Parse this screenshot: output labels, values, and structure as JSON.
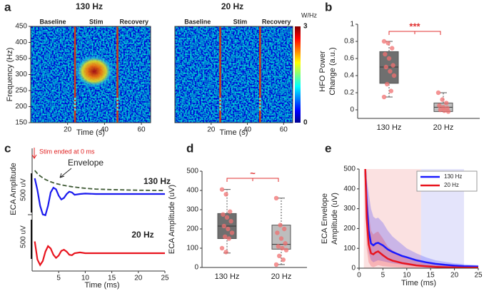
{
  "chart_data": [
    {
      "type": "heatmap",
      "panel": "a",
      "title": "130 Hz",
      "xlabel": "Time (s)",
      "ylabel": "Frequency (Hz)",
      "xlim": [
        0,
        65
      ],
      "xticks": [
        20,
        40,
        60
      ],
      "ylim": [
        150,
        450
      ],
      "yticks": [
        150,
        200,
        250,
        300,
        350,
        400,
        450
      ],
      "phases": [
        "Baseline",
        "Stim",
        "Recovery"
      ],
      "stim_window": [
        24,
        47
      ]
    },
    {
      "type": "heatmap",
      "title": "20 Hz",
      "xlabel": "Time (s)",
      "xlim": [
        0,
        65
      ],
      "xticks": [
        20,
        40,
        60
      ],
      "ylim": [
        150,
        450
      ],
      "phases": [
        "Baseline",
        "Stim",
        "Recovery"
      ],
      "stim_window": [
        25,
        47
      ],
      "colorbar": {
        "label": "W/Hz",
        "ticks": [
          0,
          3
        ]
      }
    },
    {
      "type": "box",
      "panel": "b",
      "ylabel": [
        "HFO Power",
        "Change (a.u.)"
      ],
      "categories": [
        "130 Hz",
        "20 Hz"
      ],
      "ylim": [
        -0.1,
        1
      ],
      "yticks": [
        0,
        0.2,
        0.4,
        0.6,
        0.8,
        1
      ],
      "significance": "***",
      "boxes": [
        {
          "q1": 0.31,
          "median": 0.5,
          "q3": 0.68,
          "whisker": [
            0.15,
            0.8
          ],
          "color": "#6f6f6f",
          "points": [
            0.8,
            0.78,
            0.72,
            0.65,
            0.6,
            0.52,
            0.5,
            0.45,
            0.4,
            0.3,
            0.22,
            0.15
          ]
        },
        {
          "q1": -0.02,
          "median": 0.03,
          "q3": 0.08,
          "whisker": [
            -0.02,
            0.2
          ],
          "color": "#bdbdbd",
          "points": [
            0.2,
            0.12,
            0.08,
            0.05,
            0.03,
            0.02,
            0,
            -0.01,
            -0.02
          ]
        }
      ]
    },
    {
      "type": "trace",
      "panel": "c",
      "xlabel": "Time (ms)",
      "ylabel": "ECA Amplitude",
      "xlim": [
        0,
        25
      ],
      "xticks": [
        5,
        10,
        15,
        20,
        25
      ],
      "annotation": "Stim ended at 0 ms",
      "scale_bar": {
        "value": 500,
        "label": "500 uV"
      },
      "x": [
        0.5,
        1,
        1.5,
        2,
        2.5,
        3,
        3.5,
        4,
        4.5,
        5,
        5.5,
        6,
        6.5,
        7,
        7.5,
        8,
        9,
        10,
        12,
        15,
        20,
        25
      ],
      "series": [
        {
          "name": "130 Hz",
          "color": "#1a1aee",
          "values": [
            200,
            50,
            -150,
            -260,
            -270,
            -150,
            20,
            80,
            60,
            -20,
            -70,
            -50,
            0,
            30,
            20,
            -10,
            0,
            5,
            0,
            0,
            0,
            0
          ]
        },
        {
          "name": "20 Hz",
          "color": "#e8141e",
          "values": [
            150,
            -80,
            -150,
            -100,
            20,
            90,
            60,
            -20,
            -60,
            -30,
            30,
            45,
            20,
            -20,
            -25,
            0,
            10,
            0,
            0,
            0,
            0,
            0
          ]
        }
      ],
      "envelope": {
        "name": "Envelope",
        "color": "#3f5a35",
        "values": [
          300,
          260,
          230,
          205,
          185,
          170,
          155,
          143,
          133,
          125,
          117,
          110,
          104,
          98,
          93,
          88,
          80,
          73,
          63,
          55,
          48,
          45
        ]
      }
    },
    {
      "type": "box",
      "panel": "d",
      "ylabel": [
        "ECA Amplitude (uV)"
      ],
      "categories": [
        "130 Hz",
        "20 Hz"
      ],
      "ylim": [
        0,
        500
      ],
      "yticks": [
        0,
        100,
        200,
        300,
        400,
        500
      ],
      "significance": "~",
      "boxes": [
        {
          "q1": 150,
          "median": 215,
          "q3": 280,
          "whisker": [
            75,
            405
          ],
          "color": "#6f6f6f",
          "points": [
            405,
            380,
            290,
            275,
            260,
            240,
            215,
            200,
            180,
            160,
            150,
            100,
            80
          ]
        },
        {
          "q1": 95,
          "median": 120,
          "q3": 220,
          "whisker": [
            15,
            360
          ],
          "color": "#bdbdbd",
          "points": [
            360,
            220,
            200,
            180,
            150,
            125,
            110,
            100,
            90,
            60,
            40,
            15
          ]
        }
      ]
    },
    {
      "type": "line",
      "panel": "e",
      "xlabel": "Time (ms)",
      "ylabel": [
        "ECA Envelope",
        "Amplitude (uV)"
      ],
      "xlim": [
        0,
        25
      ],
      "xticks": [
        0,
        5,
        10,
        15,
        20,
        25
      ],
      "ylim": [
        0,
        500
      ],
      "yticks": [
        0,
        100,
        200,
        300,
        400,
        500
      ],
      "legend": "upper right",
      "shaded_regions": [
        {
          "xlim": [
            1,
            13
          ],
          "color": "#fbe1e1"
        },
        {
          "xlim": [
            13,
            22
          ],
          "color": "#e4e4fb"
        }
      ],
      "x": [
        1.3,
        1.6,
        2,
        2.5,
        3,
        3.5,
        4,
        5,
        6,
        7,
        8,
        9,
        10,
        12,
        14,
        16,
        18,
        20,
        22,
        25
      ],
      "series": [
        {
          "name": "130 Hz",
          "color": "#1a1aff",
          "values": [
            500,
            330,
            190,
            125,
            115,
            125,
            128,
            115,
            95,
            82,
            72,
            62,
            55,
            40,
            30,
            22,
            17,
            13,
            10,
            8
          ],
          "upper": [
            500,
            450,
            380,
            300,
            260,
            250,
            255,
            230,
            190,
            160,
            140,
            120,
            100,
            75,
            55,
            40,
            32,
            25,
            20,
            15
          ],
          "lower": [
            400,
            200,
            80,
            40,
            30,
            35,
            40,
            35,
            30,
            25,
            22,
            18,
            15,
            10,
            8,
            6,
            4,
            3,
            2,
            2
          ]
        },
        {
          "name": "20 Hz",
          "color": "#e8141e",
          "values": [
            500,
            250,
            120,
            75,
            70,
            80,
            85,
            65,
            48,
            38,
            32,
            26,
            22,
            14,
            10,
            7,
            5,
            4,
            3,
            3
          ],
          "upper": [
            500,
            400,
            280,
            190,
            170,
            180,
            185,
            150,
            110,
            90,
            75,
            60,
            50,
            35,
            25,
            18,
            14,
            10,
            8,
            6
          ],
          "lower": [
            300,
            100,
            30,
            10,
            5,
            10,
            15,
            10,
            8,
            6,
            5,
            4,
            3,
            2,
            1,
            1,
            1,
            0,
            0,
            0
          ]
        }
      ]
    }
  ]
}
